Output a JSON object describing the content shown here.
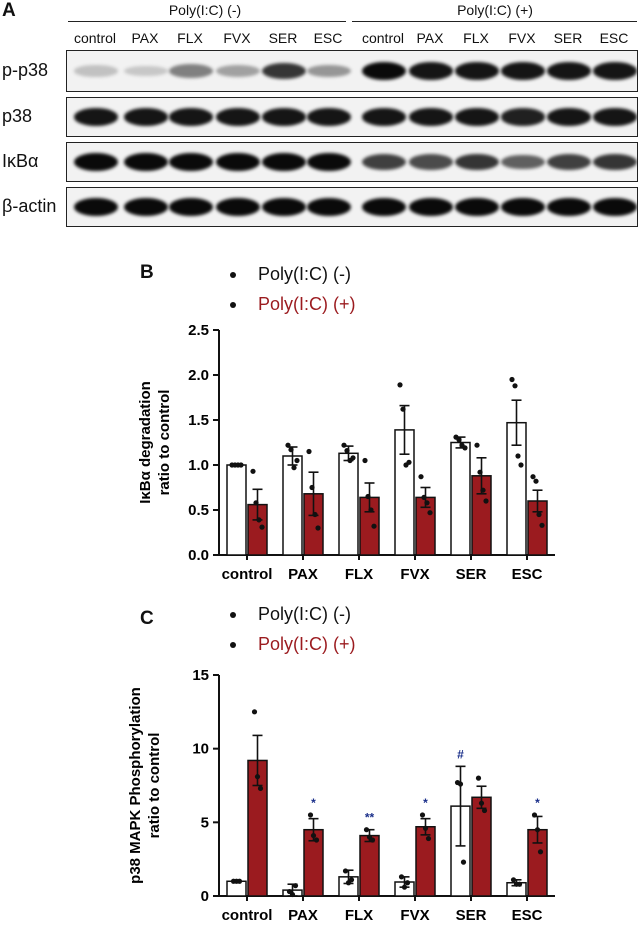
{
  "panels": {
    "a": "A",
    "b": "B",
    "c": "C"
  },
  "blot": {
    "groups": [
      "Poly(I:C) (-)",
      "Poly(I:C) (+)"
    ],
    "lanes": [
      "control",
      "PAX",
      "FLX",
      "FVX",
      "SER",
      "ESC",
      "control",
      "PAX",
      "FLX",
      "FVX",
      "SER",
      "ESC"
    ],
    "rows": [
      {
        "label": "p-p38",
        "intensities": [
          0.15,
          0.12,
          0.45,
          0.3,
          0.8,
          0.35,
          1.0,
          0.95,
          0.95,
          0.95,
          0.95,
          0.95
        ]
      },
      {
        "label": "p38",
        "intensities": [
          0.95,
          0.95,
          0.95,
          0.95,
          0.95,
          0.95,
          0.95,
          0.95,
          0.95,
          0.9,
          0.95,
          0.95
        ]
      },
      {
        "label": "IκBα",
        "intensities": [
          1.0,
          1.0,
          1.0,
          1.0,
          1.0,
          1.0,
          0.75,
          0.7,
          0.8,
          0.6,
          0.75,
          0.8
        ]
      },
      {
        "label": "β-actin",
        "intensities": [
          1.0,
          1.0,
          1.0,
          1.0,
          1.0,
          1.0,
          1.0,
          1.0,
          1.0,
          1.0,
          1.0,
          1.0
        ]
      }
    ]
  },
  "legend": {
    "neg": "Poly(I:C) (-)",
    "pos": "Poly(I:C) (+)"
  },
  "colors": {
    "neg": "#ffffff",
    "pos": "#9b1b1f",
    "significance": "#1a2f8a"
  },
  "chart_data": [
    {
      "type": "bar",
      "panel": "B",
      "ylabel": "IκBα degradation\nratio to control",
      "ylim": [
        0,
        2.5
      ],
      "yticks": [
        "0.0",
        "0.5",
        "1.0",
        "1.5",
        "2.0",
        "2.5"
      ],
      "categories": [
        "control",
        "PAX",
        "FLX",
        "FVX",
        "SER",
        "ESC"
      ],
      "series": [
        {
          "name": "Poly(I:C) (-)",
          "values": [
            1.0,
            1.1,
            1.13,
            1.39,
            1.25,
            1.47
          ],
          "sem": [
            0.0,
            0.1,
            0.08,
            0.27,
            0.06,
            0.25
          ],
          "points": [
            [
              1.0,
              1.0,
              1.0,
              1.0
            ],
            [
              1.22,
              1.17,
              0.97,
              1.05
            ],
            [
              1.22,
              1.16,
              1.05,
              1.08
            ],
            [
              1.89,
              1.62,
              1.0,
              1.03
            ],
            [
              1.31,
              1.28,
              1.22,
              1.19
            ],
            [
              1.95,
              1.88,
              1.1,
              1.0
            ]
          ]
        },
        {
          "name": "Poly(I:C) (+)",
          "values": [
            0.56,
            0.68,
            0.64,
            0.64,
            0.88,
            0.6
          ],
          "sem": [
            0.17,
            0.24,
            0.16,
            0.11,
            0.2,
            0.12
          ],
          "points": [
            [
              0.93,
              0.58,
              0.39,
              0.31
            ],
            [
              1.15,
              0.75,
              0.45,
              0.3
            ],
            [
              1.05,
              0.65,
              0.5,
              0.32
            ],
            [
              0.87,
              0.64,
              0.58,
              0.47
            ],
            [
              1.22,
              0.92,
              0.72,
              0.6
            ],
            [
              0.87,
              0.82,
              0.45,
              0.33
            ]
          ]
        }
      ]
    },
    {
      "type": "bar",
      "panel": "C",
      "ylabel": "p38 MAPK Phosphorylation\nratio to control",
      "ylim": [
        0,
        15
      ],
      "yticks": [
        "0",
        "5",
        "10",
        "15"
      ],
      "categories": [
        "control",
        "PAX",
        "FLX",
        "FVX",
        "SER",
        "ESC"
      ],
      "series": [
        {
          "name": "Poly(I:C) (-)",
          "values": [
            1.0,
            0.4,
            1.3,
            0.95,
            6.1,
            0.9
          ],
          "sem": [
            0.0,
            0.4,
            0.45,
            0.35,
            2.7,
            0.2
          ],
          "points": [
            [
              1.0,
              1.0,
              1.0
            ],
            [
              0.3,
              0.1,
              0.7
            ],
            [
              1.7,
              0.9,
              1.1
            ],
            [
              1.3,
              0.6,
              0.9
            ],
            [
              7.7,
              7.6,
              2.3
            ],
            [
              1.1,
              0.8,
              0.8
            ]
          ],
          "annotations": [
            "",
            "",
            "",
            "",
            "#",
            ""
          ]
        },
        {
          "name": "Poly(I:C) (+)",
          "values": [
            9.2,
            4.5,
            4.1,
            4.7,
            6.7,
            4.5
          ],
          "sem": [
            1.7,
            0.75,
            0.4,
            0.55,
            0.75,
            0.9
          ],
          "points": [
            [
              12.5,
              8.1,
              7.3
            ],
            [
              5.5,
              4.1,
              3.8
            ],
            [
              4.5,
              4.0,
              3.8
            ],
            [
              5.5,
              4.6,
              3.9
            ],
            [
              8.0,
              6.3,
              5.8
            ],
            [
              5.5,
              4.5,
              3.0
            ]
          ],
          "annotations": [
            "",
            "*",
            "**",
            "*",
            "",
            "*"
          ]
        }
      ]
    }
  ]
}
